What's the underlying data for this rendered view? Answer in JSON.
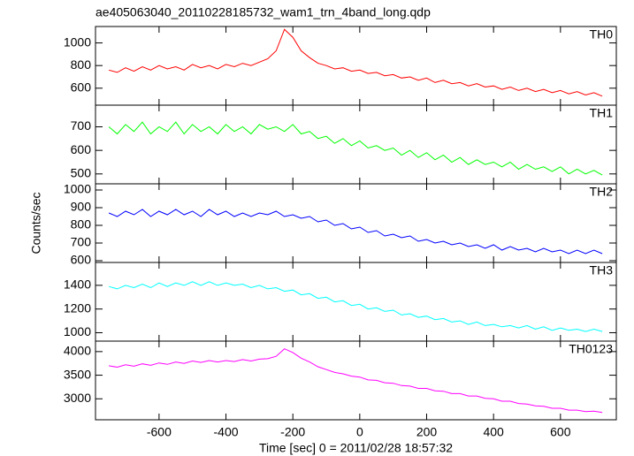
{
  "chart_data": [
    {
      "type": "line",
      "title": "ae405063040_20110228185732_wam1_trn_4band_long.qdp",
      "x": [
        -750,
        -725,
        -700,
        -675,
        -650,
        -625,
        -600,
        -575,
        -550,
        -525,
        -500,
        -475,
        -450,
        -425,
        -400,
        -375,
        -350,
        -325,
        -300,
        -275,
        -250,
        -225,
        -200,
        -175,
        -150,
        -125,
        -100,
        -75,
        -50,
        -25,
        0,
        25,
        50,
        75,
        100,
        125,
        150,
        175,
        200,
        225,
        250,
        275,
        300,
        325,
        350,
        375,
        400,
        425,
        450,
        475,
        500,
        525,
        550,
        575,
        600,
        625,
        650,
        675,
        700,
        725
      ],
      "series": [
        {
          "name": "TH0",
          "color": "#ff0000",
          "values": [
            760,
            740,
            780,
            750,
            790,
            760,
            800,
            770,
            790,
            760,
            810,
            780,
            800,
            770,
            810,
            790,
            820,
            800,
            830,
            860,
            930,
            1120,
            1050,
            930,
            870,
            820,
            800,
            770,
            780,
            750,
            760,
            730,
            740,
            710,
            720,
            690,
            700,
            670,
            690,
            650,
            670,
            640,
            650,
            620,
            640,
            610,
            620,
            590,
            610,
            580,
            600,
            570,
            590,
            560,
            580,
            550,
            570,
            540,
            560,
            530
          ]
        }
      ],
      "xlim": [
        -790,
        767
      ],
      "ylim": [
        450,
        1145
      ],
      "yticks": [
        600,
        800,
        1000
      ],
      "xticks": [
        -600,
        -400,
        -200,
        0,
        200,
        400,
        600
      ]
    },
    {
      "type": "line",
      "x": [
        -750,
        -725,
        -700,
        -675,
        -650,
        -625,
        -600,
        -575,
        -550,
        -525,
        -500,
        -475,
        -450,
        -425,
        -400,
        -375,
        -350,
        -325,
        -300,
        -275,
        -250,
        -225,
        -200,
        -175,
        -150,
        -125,
        -100,
        -75,
        -50,
        -25,
        0,
        25,
        50,
        75,
        100,
        125,
        150,
        175,
        200,
        225,
        250,
        275,
        300,
        325,
        350,
        375,
        400,
        425,
        450,
        475,
        500,
        525,
        550,
        575,
        600,
        625,
        650,
        675,
        700,
        725
      ],
      "series": [
        {
          "name": "TH1",
          "color": "#00ff00",
          "values": [
            700,
            670,
            710,
            680,
            720,
            670,
            700,
            680,
            720,
            670,
            710,
            680,
            700,
            670,
            710,
            680,
            700,
            670,
            710,
            690,
            700,
            680,
            710,
            670,
            680,
            650,
            660,
            630,
            650,
            620,
            640,
            610,
            620,
            600,
            610,
            580,
            600,
            570,
            590,
            560,
            580,
            550,
            570,
            540,
            560,
            540,
            550,
            530,
            550,
            520,
            540,
            520,
            530,
            510,
            530,
            500,
            520,
            500,
            515,
            495
          ]
        }
      ],
      "xlim": [
        -790,
        767
      ],
      "ylim": [
        458,
        792
      ],
      "yticks": [
        500,
        600,
        700
      ],
      "xticks": [
        -600,
        -400,
        -200,
        0,
        200,
        400,
        600
      ]
    },
    {
      "type": "line",
      "ylabel": "Counts/sec",
      "x": [
        -750,
        -725,
        -700,
        -675,
        -650,
        -625,
        -600,
        -575,
        -550,
        -525,
        -500,
        -475,
        -450,
        -425,
        -400,
        -375,
        -350,
        -325,
        -300,
        -275,
        -250,
        -225,
        -200,
        -175,
        -150,
        -125,
        -100,
        -75,
        -50,
        -25,
        0,
        25,
        50,
        75,
        100,
        125,
        150,
        175,
        200,
        225,
        250,
        275,
        300,
        325,
        350,
        375,
        400,
        425,
        450,
        475,
        500,
        525,
        550,
        575,
        600,
        625,
        650,
        675,
        700,
        725
      ],
      "series": [
        {
          "name": "TH2",
          "color": "#0000ff",
          "values": [
            870,
            850,
            880,
            860,
            890,
            850,
            880,
            860,
            890,
            860,
            880,
            850,
            890,
            860,
            880,
            850,
            870,
            850,
            870,
            860,
            880,
            850,
            860,
            840,
            850,
            820,
            830,
            800,
            810,
            780,
            790,
            760,
            770,
            740,
            750,
            730,
            740,
            710,
            720,
            700,
            710,
            690,
            700,
            680,
            690,
            670,
            690,
            660,
            680,
            660,
            670,
            650,
            670,
            650,
            660,
            640,
            660,
            640,
            660,
            640
          ]
        }
      ],
      "xlim": [
        -790,
        767
      ],
      "ylim": [
        590,
        1035
      ],
      "yticks": [
        600,
        700,
        800,
        900,
        1000
      ],
      "xticks": [
        -600,
        -400,
        -200,
        0,
        200,
        400,
        600
      ]
    },
    {
      "type": "line",
      "x": [
        -750,
        -725,
        -700,
        -675,
        -650,
        -625,
        -600,
        -575,
        -550,
        -525,
        -500,
        -475,
        -450,
        -425,
        -400,
        -375,
        -350,
        -325,
        -300,
        -275,
        -250,
        -225,
        -200,
        -175,
        -150,
        -125,
        -100,
        -75,
        -50,
        -25,
        0,
        25,
        50,
        75,
        100,
        125,
        150,
        175,
        200,
        225,
        250,
        275,
        300,
        325,
        350,
        375,
        400,
        425,
        450,
        475,
        500,
        525,
        550,
        575,
        600,
        625,
        650,
        675,
        700,
        725
      ],
      "series": [
        {
          "name": "TH3",
          "color": "#00ffff",
          "values": [
            1390,
            1370,
            1400,
            1380,
            1410,
            1380,
            1420,
            1390,
            1420,
            1400,
            1430,
            1400,
            1430,
            1400,
            1420,
            1400,
            1410,
            1380,
            1400,
            1370,
            1380,
            1350,
            1360,
            1320,
            1330,
            1290,
            1300,
            1260,
            1270,
            1230,
            1240,
            1200,
            1210,
            1180,
            1190,
            1150,
            1160,
            1130,
            1140,
            1110,
            1120,
            1090,
            1100,
            1070,
            1090,
            1060,
            1070,
            1050,
            1060,
            1040,
            1060,
            1030,
            1050,
            1020,
            1040,
            1020,
            1030,
            1010,
            1030,
            1010
          ]
        }
      ],
      "xlim": [
        -790,
        767
      ],
      "ylim": [
        929,
        1593
      ],
      "yticks": [
        1000,
        1200,
        1400
      ],
      "xticks": [
        -600,
        -400,
        -200,
        0,
        200,
        400,
        600
      ]
    },
    {
      "type": "line",
      "xlabel": "Time [sec] 0 = 2011/02/28 18:57:32",
      "x": [
        -750,
        -725,
        -700,
        -675,
        -650,
        -625,
        -600,
        -575,
        -550,
        -525,
        -500,
        -475,
        -450,
        -425,
        -400,
        -375,
        -350,
        -325,
        -300,
        -275,
        -250,
        -225,
        -200,
        -175,
        -150,
        -125,
        -100,
        -75,
        -50,
        -25,
        0,
        25,
        50,
        75,
        100,
        125,
        150,
        175,
        200,
        225,
        250,
        275,
        300,
        325,
        350,
        375,
        400,
        425,
        450,
        475,
        500,
        525,
        550,
        575,
        600,
        625,
        650,
        675,
        700,
        725
      ],
      "series": [
        {
          "name": "TH0123",
          "color": "#ff00ff",
          "values": [
            3700,
            3670,
            3720,
            3690,
            3740,
            3710,
            3760,
            3730,
            3780,
            3750,
            3800,
            3770,
            3810,
            3780,
            3810,
            3790,
            3830,
            3800,
            3840,
            3850,
            3900,
            4060,
            3980,
            3860,
            3780,
            3680,
            3620,
            3560,
            3530,
            3480,
            3460,
            3400,
            3390,
            3340,
            3330,
            3280,
            3270,
            3220,
            3220,
            3170,
            3160,
            3110,
            3110,
            3060,
            3060,
            3010,
            3000,
            2950,
            2950,
            2900,
            2890,
            2850,
            2840,
            2800,
            2800,
            2760,
            2760,
            2730,
            2740,
            2710
          ]
        }
      ],
      "xlim": [
        -790,
        767
      ],
      "ylim": [
        2556,
        4222
      ],
      "yticks": [
        3000,
        3500,
        4000
      ],
      "xticks": [
        -600,
        -400,
        -200,
        0,
        200,
        400,
        600
      ]
    }
  ]
}
